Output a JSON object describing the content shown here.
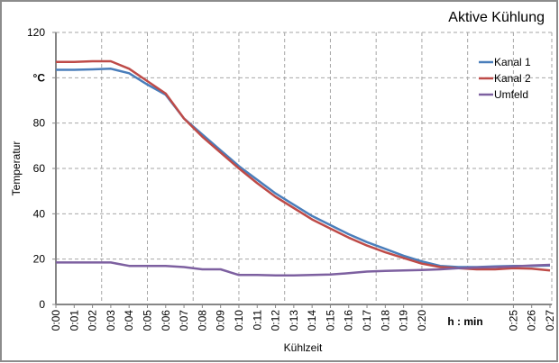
{
  "chart_data": {
    "type": "line",
    "title": "Aktive Kühlung",
    "xlabel": "Kühlzeit",
    "ylabel": "Temperatur",
    "y_unit_label": "°C",
    "x_unit_label": "h : min",
    "ylim": [
      0,
      120
    ],
    "xlim": [
      0,
      27
    ],
    "y_ticks": [
      {
        "value": 0,
        "label": "0"
      },
      {
        "value": 20,
        "label": "20"
      },
      {
        "value": 40,
        "label": "40"
      },
      {
        "value": 60,
        "label": "60"
      },
      {
        "value": 80,
        "label": "80"
      },
      {
        "value": 100,
        "label": "°C"
      },
      {
        "value": 120,
        "label": "120"
      }
    ],
    "x_ticks": [
      {
        "value": 0,
        "label": "0:00"
      },
      {
        "value": 1,
        "label": "0:01"
      },
      {
        "value": 2,
        "label": "0:02"
      },
      {
        "value": 3,
        "label": "0:03"
      },
      {
        "value": 4,
        "label": "0:04"
      },
      {
        "value": 5,
        "label": "0:05"
      },
      {
        "value": 6,
        "label": "0:06"
      },
      {
        "value": 7,
        "label": "0:07"
      },
      {
        "value": 8,
        "label": "0:08"
      },
      {
        "value": 9,
        "label": "0:09"
      },
      {
        "value": 10,
        "label": "0:10"
      },
      {
        "value": 11,
        "label": "0:11"
      },
      {
        "value": 12,
        "label": "0:12"
      },
      {
        "value": 13,
        "label": "0:13"
      },
      {
        "value": 14,
        "label": "0:14"
      },
      {
        "value": 15,
        "label": "0:15"
      },
      {
        "value": 16,
        "label": "0:16"
      },
      {
        "value": 17,
        "label": "0:17"
      },
      {
        "value": 18,
        "label": "0:18"
      },
      {
        "value": 19,
        "label": "0:19"
      },
      {
        "value": 20,
        "label": "0:20"
      },
      {
        "value": 25,
        "label": "0:25"
      },
      {
        "value": 26,
        "label": "0:26"
      },
      {
        "value": 27,
        "label": "0:27"
      }
    ],
    "grid": true,
    "x_grid_step": 2.5,
    "y_grid_step": 20,
    "legend": "right",
    "x": [
      0,
      1,
      2,
      3,
      4,
      5,
      6,
      7,
      8,
      9,
      10,
      11,
      12,
      13,
      14,
      15,
      16,
      17,
      18,
      19,
      20,
      21,
      22,
      23,
      24,
      25,
      26,
      27
    ],
    "series": [
      {
        "name": "Kanal 1",
        "color": "#4a7ebb",
        "values": [
          103.5,
          103.5,
          103.7,
          104,
          102,
          97,
          92.5,
          82,
          75,
          68,
          61,
          55,
          49,
          44,
          39,
          35,
          31,
          27.5,
          24.5,
          21.5,
          19,
          17,
          16.5,
          16.5,
          16.8,
          17,
          17,
          17.2
        ]
      },
      {
        "name": "Kanal 2",
        "color": "#be4b48",
        "values": [
          107,
          107,
          107.3,
          107.3,
          104,
          98.5,
          93,
          82,
          74,
          67,
          60,
          53.5,
          47.5,
          42.5,
          37.5,
          33.5,
          29.5,
          26,
          23,
          20.5,
          18,
          16.5,
          16,
          15.5,
          15.5,
          16,
          15.8,
          15
        ]
      },
      {
        "name": "Umfeld",
        "color": "#7d60a0",
        "values": [
          18.5,
          18.5,
          18.5,
          18.5,
          17,
          17,
          17,
          16.5,
          15.5,
          15.5,
          13,
          13,
          12.8,
          12.8,
          13,
          13.2,
          13.8,
          14.5,
          14.8,
          15,
          15.2,
          15.5,
          16,
          16.3,
          16.5,
          16.8,
          17.2,
          17.5
        ]
      }
    ]
  }
}
